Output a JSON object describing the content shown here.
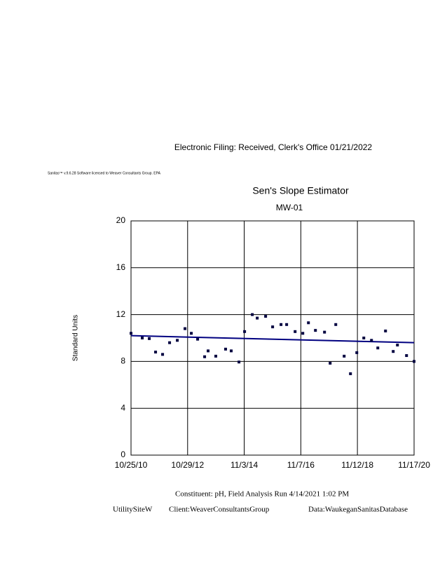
{
  "header": "Electronic Filing: Received, Clerk's Office 01/21/2022",
  "license": "Sanitas™ v.9.6.28 Software licensed to Weaver Consultants Group. EPA",
  "footer": {
    "constituent": "Constituent: pH, Field Analysis Run 4/14/2021 1:02 PM",
    "site": "UtilitySiteW",
    "client": "Client:WeaverConsultantsGroup",
    "data": "Data:WaukeganSanitasDatabase"
  },
  "chart_data": {
    "type": "scatter",
    "title": "Sen's Slope Estimator",
    "subtitle": "MW-01",
    "y_label": "Standard Units",
    "x": [
      "10/25/10",
      "3/20/11",
      "6/19/11",
      "9/9/11",
      "12/9/11",
      "3/9/12",
      "6/17/12",
      "9/25/12",
      "12/16/12",
      "3/8/13",
      "6/7/13",
      "7/22/13",
      "10/30/13",
      "3/6/14",
      "5/18/14",
      "8/27/14",
      "11/8/14",
      "2/16/15",
      "4/21/15",
      "8/8/15",
      "11/7/15",
      "2/24/16",
      "5/7/16",
      "8/25/16",
      "12/3/16",
      "2/14/17",
      "5/16/17",
      "9/11/17",
      "11/23/17",
      "2/4/18",
      "5/24/18",
      "8/14/18",
      "11/4/18",
      "2/3/19",
      "5/14/19",
      "8/4/19",
      "11/12/19",
      "2/20/20",
      "4/15/20",
      "8/11/20",
      "11/17/20"
    ],
    "values": [
      10.4,
      10.0,
      9.95,
      8.8,
      8.6,
      9.6,
      9.8,
      10.8,
      10.4,
      9.9,
      8.4,
      8.9,
      8.45,
      9.05,
      8.9,
      7.95,
      10.55,
      12.0,
      11.7,
      11.85,
      10.95,
      11.15,
      11.15,
      10.55,
      10.4,
      11.3,
      10.65,
      10.5,
      7.85,
      11.15,
      8.45,
      6.95,
      8.75,
      10.0,
      9.8,
      9.15,
      10.6,
      8.85,
      9.4,
      8.5,
      8.0
    ],
    "color": "#000040",
    "trend": {
      "x": [
        "10/25/10",
        "11/17/20"
      ],
      "values": [
        10.2,
        9.6
      ],
      "color": "#000080"
    },
    "xlim": [
      "10/25/10",
      "11/17/20"
    ],
    "xticks": [
      "10/25/10",
      "10/29/12",
      "11/3/14",
      "11/7/16",
      "11/12/18",
      "11/17/20"
    ],
    "ylim": [
      0,
      20
    ],
    "yticks": [
      0,
      4,
      8,
      12,
      16,
      20
    ],
    "grid": true
  }
}
